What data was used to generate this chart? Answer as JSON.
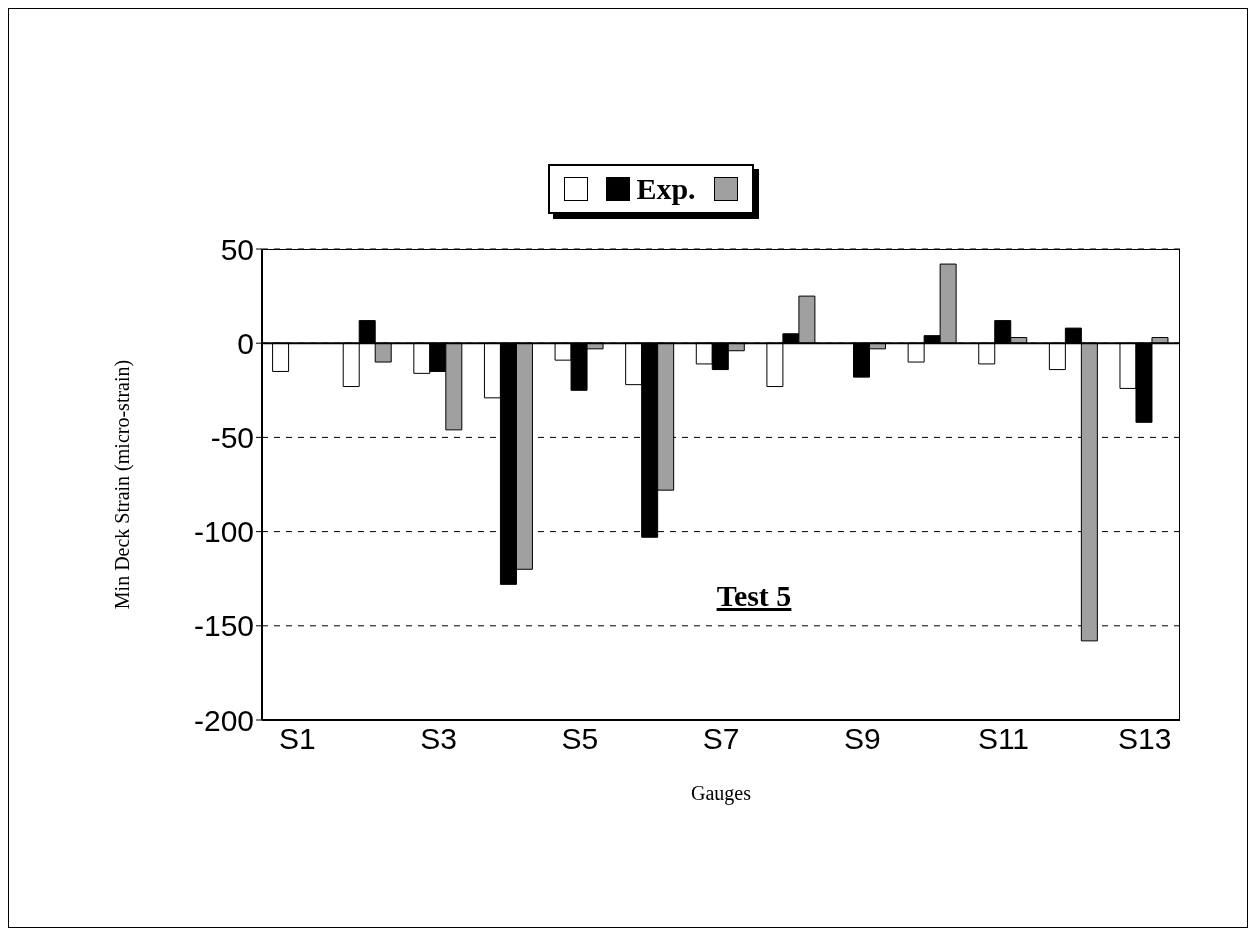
{
  "chart_data": {
    "type": "bar",
    "xlabel": "Gauges",
    "ylabel": "Min Deck Strain (micro-strain)",
    "categories": [
      "S1",
      null,
      "S3",
      null,
      "S5",
      null,
      "S7",
      null,
      "S9",
      null,
      "S11",
      null,
      "S13"
    ],
    "series": [
      {
        "color": "#ffffff",
        "values": [
          -15,
          -23,
          -16,
          -29,
          -9,
          -22,
          -11,
          -23,
          0,
          -10,
          -11,
          -14,
          -24
        ]
      },
      {
        "name": "Exp.",
        "color": "#000000",
        "values": [
          0,
          12,
          -15,
          -128,
          -25,
          -103,
          -14,
          5,
          -18,
          4,
          12,
          8,
          -42
        ]
      },
      {
        "color": "#a0a0a0",
        "values": [
          0,
          -10,
          -46,
          -120,
          -3,
          -78,
          -4,
          25,
          -3,
          42,
          3,
          -158,
          3
        ]
      }
    ],
    "ylim": [
      -200,
      50
    ],
    "yticks": [
      -200,
      -150,
      -100,
      -50,
      0,
      50
    ],
    "grid": "y",
    "line_style": "dashed",
    "legend": "top",
    "annotations": [
      "Test 5"
    ]
  }
}
